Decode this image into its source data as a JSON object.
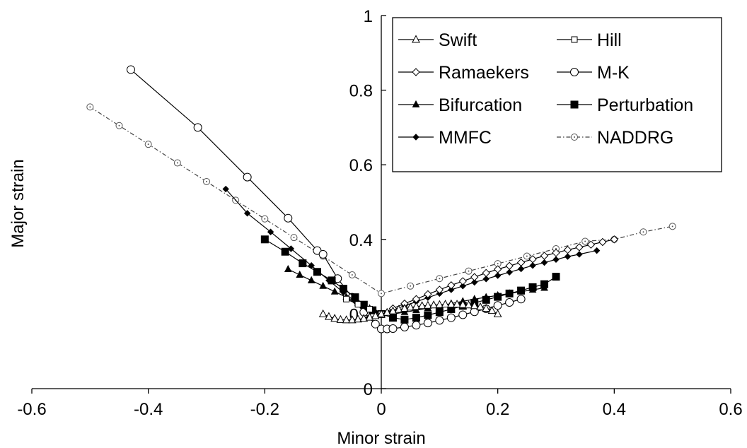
{
  "chart_data": {
    "type": "line",
    "title": "",
    "xlabel": "Minor strain",
    "ylabel": "Major strain",
    "xlim": [
      -0.6,
      0.6
    ],
    "ylim": [
      0,
      1
    ],
    "xticks": [
      "-0.6",
      "-0.4",
      "-0.2",
      "0",
      "0.2",
      "0.4",
      "0.6"
    ],
    "yticks": [
      "0",
      "0.2",
      "0.4",
      "0.6",
      "0.8",
      "1"
    ],
    "grid": false,
    "legend_position": "top-right",
    "series": [
      {
        "name": "Swift",
        "marker": "triangle-open",
        "dash": "solid",
        "x": [
          -0.1,
          -0.09,
          -0.08,
          -0.07,
          -0.06,
          -0.05,
          -0.04,
          -0.03,
          -0.02,
          -0.01,
          0,
          0.01,
          0.02,
          0.03,
          0.04,
          0.05,
          0.06,
          0.07,
          0.08,
          0.09,
          0.1,
          0.11,
          0.12,
          0.13,
          0.14,
          0.15,
          0.16,
          0.17,
          0.18,
          0.19,
          0.2
        ],
        "y": [
          0.2,
          0.193,
          0.188,
          0.185,
          0.184,
          0.184,
          0.186,
          0.188,
          0.191,
          0.195,
          0.2,
          0.204,
          0.208,
          0.212,
          0.215,
          0.218,
          0.22,
          0.222,
          0.223,
          0.224,
          0.225,
          0.226,
          0.226,
          0.226,
          0.225,
          0.224,
          0.222,
          0.219,
          0.215,
          0.209,
          0.2
        ]
      },
      {
        "name": "Hill",
        "marker": "square-open",
        "dash": "solid",
        "x": [
          -0.06,
          -0.04,
          -0.02,
          0
        ],
        "y": [
          0.24,
          0.226,
          0.213,
          0.2
        ]
      },
      {
        "name": "Ramaekers",
        "marker": "diamond-open",
        "dash": "solid",
        "x": [
          0,
          0.02,
          0.04,
          0.06,
          0.08,
          0.1,
          0.12,
          0.14,
          0.16,
          0.18,
          0.2,
          0.22,
          0.24,
          0.26,
          0.28,
          0.3,
          0.32,
          0.34,
          0.36,
          0.38,
          0.4
        ],
        "y": [
          0.2,
          0.215,
          0.228,
          0.24,
          0.253,
          0.265,
          0.277,
          0.288,
          0.299,
          0.31,
          0.32,
          0.329,
          0.338,
          0.347,
          0.356,
          0.364,
          0.372,
          0.379,
          0.386,
          0.393,
          0.4
        ]
      },
      {
        "name": "M-K",
        "marker": "circle-open",
        "dash": "solid",
        "x": [
          -0.43,
          -0.315,
          -0.23,
          -0.16,
          -0.11,
          -0.1,
          -0.075,
          -0.05,
          -0.03,
          -0.01,
          0,
          0.01,
          0.02,
          0.04,
          0.06,
          0.08,
          0.1,
          0.12,
          0.14,
          0.16,
          0.18,
          0.2,
          0.22,
          0.24
        ],
        "y": [
          0.855,
          0.7,
          0.567,
          0.457,
          0.37,
          0.36,
          0.295,
          0.245,
          0.205,
          0.173,
          0.16,
          0.16,
          0.161,
          0.165,
          0.17,
          0.176,
          0.183,
          0.19,
          0.198,
          0.206,
          0.214,
          0.223,
          0.231,
          0.24
        ]
      },
      {
        "name": "Bifurcation",
        "marker": "triangle-filled",
        "dash": "solid",
        "x": [
          -0.16,
          -0.14,
          -0.12,
          -0.1,
          -0.08,
          -0.06,
          -0.04,
          -0.02,
          0,
          0.02,
          0.04,
          0.06,
          0.08,
          0.1,
          0.12,
          0.14,
          0.16,
          0.18,
          0.2,
          0.22,
          0.24,
          0.26,
          0.28
        ],
        "y": [
          0.32,
          0.305,
          0.29,
          0.275,
          0.26,
          0.245,
          0.23,
          0.215,
          0.2,
          0.2,
          0.205,
          0.21,
          0.216,
          0.222,
          0.228,
          0.234,
          0.24,
          0.245,
          0.25,
          0.255,
          0.26,
          0.265,
          0.27
        ]
      },
      {
        "name": "Perturbation",
        "marker": "square-filled",
        "dash": "solid",
        "x": [
          -0.2,
          -0.165,
          -0.135,
          -0.11,
          -0.085,
          -0.065,
          -0.045,
          -0.03,
          -0.015,
          0,
          0.02,
          0.04,
          0.06,
          0.08,
          0.1,
          0.12,
          0.14,
          0.16,
          0.18,
          0.2,
          0.22,
          0.24,
          0.26,
          0.28,
          0.3
        ],
        "y": [
          0.4,
          0.367,
          0.336,
          0.313,
          0.29,
          0.268,
          0.245,
          0.225,
          0.21,
          0.2,
          0.19,
          0.185,
          0.19,
          0.197,
          0.205,
          0.213,
          0.222,
          0.23,
          0.238,
          0.246,
          0.255,
          0.263,
          0.272,
          0.28,
          0.3
        ]
      },
      {
        "name": "MMFC",
        "marker": "diamond-filled",
        "dash": "solid",
        "x": [
          -0.267,
          -0.23,
          -0.19,
          -0.155,
          -0.12,
          -0.09,
          -0.065,
          -0.045,
          -0.025,
          -0.01,
          0,
          0.01,
          0.02,
          0.04,
          0.06,
          0.08,
          0.1,
          0.12,
          0.14,
          0.16,
          0.18,
          0.2,
          0.22,
          0.24,
          0.26,
          0.28,
          0.3,
          0.32,
          0.34,
          0.37
        ],
        "y": [
          0.535,
          0.47,
          0.42,
          0.375,
          0.33,
          0.29,
          0.258,
          0.234,
          0.215,
          0.205,
          0.2,
          0.205,
          0.211,
          0.222,
          0.233,
          0.244,
          0.255,
          0.265,
          0.275,
          0.285,
          0.294,
          0.303,
          0.312,
          0.321,
          0.33,
          0.338,
          0.346,
          0.354,
          0.36,
          0.37
        ]
      },
      {
        "name": "NADDRG",
        "marker": "circle-dot",
        "dash": "dashdot",
        "x": [
          -0.5,
          -0.45,
          -0.4,
          -0.35,
          -0.3,
          -0.25,
          -0.2,
          -0.15,
          -0.1,
          -0.05,
          0,
          0.05,
          0.1,
          0.15,
          0.2,
          0.25,
          0.3,
          0.35,
          0.4,
          0.45,
          0.5
        ],
        "y": [
          0.755,
          0.705,
          0.655,
          0.605,
          0.555,
          0.505,
          0.455,
          0.405,
          0.355,
          0.305,
          0.255,
          0.275,
          0.295,
          0.315,
          0.335,
          0.355,
          0.375,
          0.395,
          0.4,
          0.42,
          0.435
        ]
      }
    ]
  }
}
